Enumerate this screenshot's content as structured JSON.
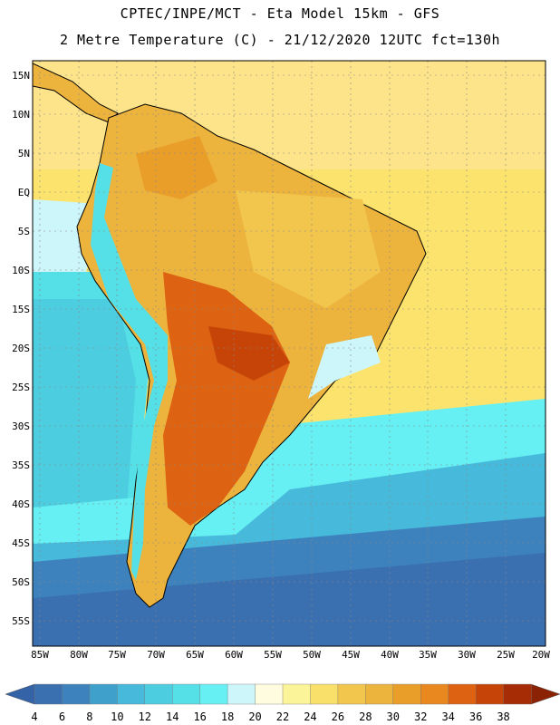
{
  "header": {
    "line1": "CPTEC/INPE/MCT -  Eta Model 15km - GFS",
    "line2": "2 Metre Temperature (C) - 21/12/2020 12UTC fct=130h"
  },
  "map": {
    "region": "South America",
    "lat_range": [
      -58,
      17
    ],
    "lon_range": [
      -86,
      -20
    ],
    "lat_labels": [
      "15N",
      "10N",
      "5N",
      "EQ",
      "5S",
      "10S",
      "15S",
      "20S",
      "25S",
      "30S",
      "35S",
      "40S",
      "45S",
      "50S",
      "55S"
    ],
    "lon_labels": [
      "85W",
      "80W",
      "75W",
      "70W",
      "65W",
      "60W",
      "55W",
      "50W",
      "45W",
      "40W",
      "35W",
      "30W",
      "25W",
      "20W"
    ]
  },
  "colorbar": {
    "labels": [
      "4",
      "6",
      "8",
      "10",
      "12",
      "14",
      "16",
      "18",
      "20",
      "22",
      "24",
      "26",
      "28",
      "30",
      "32",
      "34",
      "36",
      "38"
    ],
    "colors": [
      "#3a6fb0",
      "#3d82bd",
      "#40a0cc",
      "#47b9da",
      "#4ccde0",
      "#55dfe6",
      "#66f0f3",
      "#cdf6fb",
      "#fffce0",
      "#fcf499",
      "#f9e06a",
      "#f2c54d",
      "#ecb33d",
      "#e99e2a",
      "#e8881e",
      "#dd6212",
      "#c74408",
      "#a52c05"
    ],
    "low_arrow_color": "#3563a8",
    "high_arrow_color": "#8b2204"
  }
}
